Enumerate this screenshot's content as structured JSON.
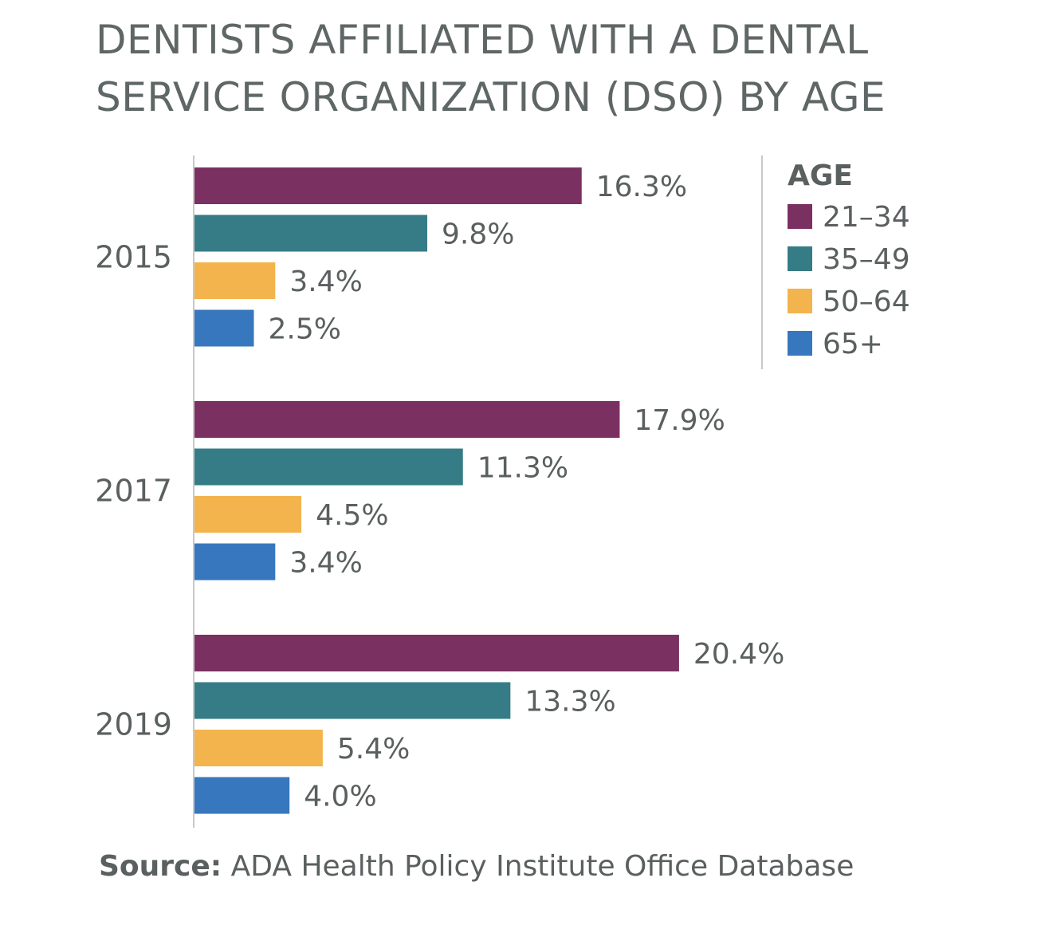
{
  "title": {
    "line1": "DENTISTS AFFILIATED WITH A DENTAL",
    "line2": "SERVICE ORGANIZATION (DSO) BY AGE"
  },
  "source": {
    "label": "Source:",
    "text": "ADA Health Policy Institute Office Database"
  },
  "colors": {
    "21-34": "#7b3062",
    "35-49": "#357c86",
    "50-64": "#f3b44e",
    "65+": "#3777bd",
    "text": "#5a5f5f",
    "axis": "#c8c8c8"
  },
  "chart_data": {
    "type": "bar",
    "orientation": "horizontal",
    "title": "DENTISTS AFFILIATED WITH A DENTAL SERVICE ORGANIZATION (DSO) BY AGE",
    "categories": [
      "2015",
      "2017",
      "2019"
    ],
    "legend_title": "AGE",
    "legend_position": "top-right",
    "series": [
      {
        "name": "21–34",
        "color": "#7b3062",
        "values": [
          16.3,
          17.9,
          20.4
        ],
        "labels": [
          "16.3%",
          "17.9%",
          "20.4%"
        ]
      },
      {
        "name": "35–49",
        "color": "#357c86",
        "values": [
          9.8,
          11.3,
          13.3
        ],
        "labels": [
          "9.8%",
          "11.3%",
          "13.3%"
        ]
      },
      {
        "name": "50–64",
        "color": "#f3b44e",
        "values": [
          3.4,
          4.5,
          5.4
        ],
        "labels": [
          "3.4%",
          "4.5%",
          "5.4%"
        ]
      },
      {
        "name": "65+",
        "color": "#3777bd",
        "values": [
          2.5,
          3.4,
          4.0
        ],
        "labels": [
          "2.5%",
          "3.4%",
          "4.0%"
        ]
      }
    ],
    "xlim": [
      0,
      25
    ],
    "grid": false,
    "xlabel": "",
    "ylabel": ""
  }
}
